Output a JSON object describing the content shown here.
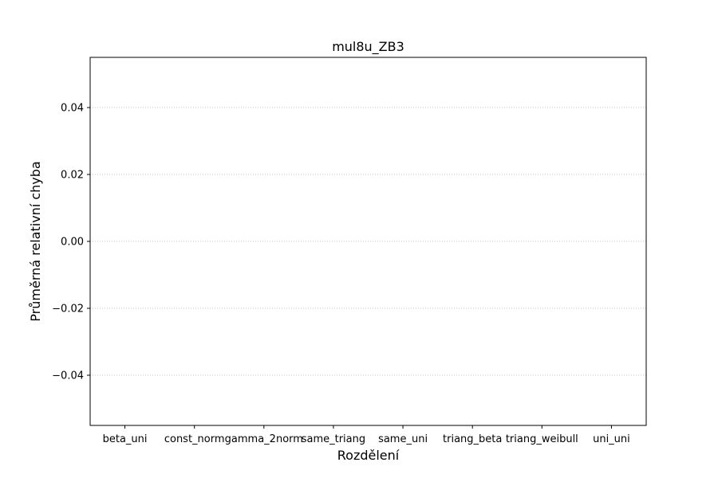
{
  "chart_data": {
    "type": "bar",
    "title": "mul8u_ZB3",
    "xlabel": "Rozdělení",
    "ylabel": "Průměrná relativní chyba",
    "categories": [
      "beta_uni",
      "const_norm",
      "gamma_2norm",
      "same_triang",
      "same_uni",
      "triang_beta",
      "triang_weibull",
      "uni_uni"
    ],
    "series": [
      {
        "values": [
          0,
          0,
          0,
          0,
          0,
          0,
          0,
          0
        ]
      }
    ],
    "ylim": [
      -0.055,
      0.055
    ],
    "yticks": [
      -0.04,
      -0.02,
      0.0,
      0.02,
      0.04
    ],
    "ytick_labels": [
      "−0.04",
      "−0.02",
      "0.00",
      "0.02",
      "0.04"
    ],
    "grid": "y-dotted",
    "colors": {
      "grid": "#b0b0b0",
      "axis": "#000000",
      "bar": "#1f77b4"
    }
  }
}
